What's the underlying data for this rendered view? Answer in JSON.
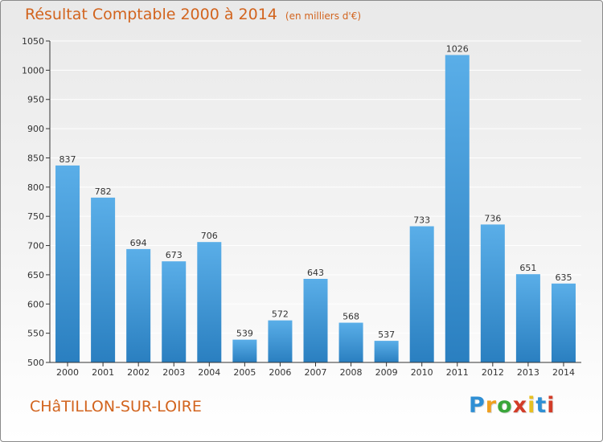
{
  "header": {
    "title": "Résultat Comptable 2000 à 2014",
    "unit": "(en milliers d'€)"
  },
  "place_name": "CHâTILLON-SUR-LOIRE",
  "logo": {
    "text": "Proxiti",
    "letter_colors": [
      "#2f8fd4",
      "#f0a020",
      "#3aa63a",
      "#d23c28",
      "#e8c020",
      "#2f8fd4",
      "#d23c28"
    ]
  },
  "colors": {
    "accent": "#d2641e",
    "bar_light": "#5aaee8",
    "bar_dark": "#2a7fc0",
    "grid": "#ffffff",
    "axis": "#333333"
  },
  "chart_data": {
    "type": "bar",
    "title": "Résultat Comptable 2000 à 2014",
    "xlabel": "",
    "ylabel": "",
    "categories": [
      "2000",
      "2001",
      "2002",
      "2003",
      "2004",
      "2005",
      "2006",
      "2007",
      "2008",
      "2009",
      "2010",
      "2011",
      "2012",
      "2013",
      "2014"
    ],
    "values": [
      837,
      782,
      694,
      673,
      706,
      539,
      572,
      643,
      568,
      537,
      733,
      1026,
      736,
      651,
      635
    ],
    "ylim": [
      500,
      1050
    ],
    "yticks": [
      500,
      550,
      600,
      650,
      700,
      750,
      800,
      850,
      900,
      950,
      1000,
      1050
    ],
    "grid": true,
    "legend": "none"
  }
}
